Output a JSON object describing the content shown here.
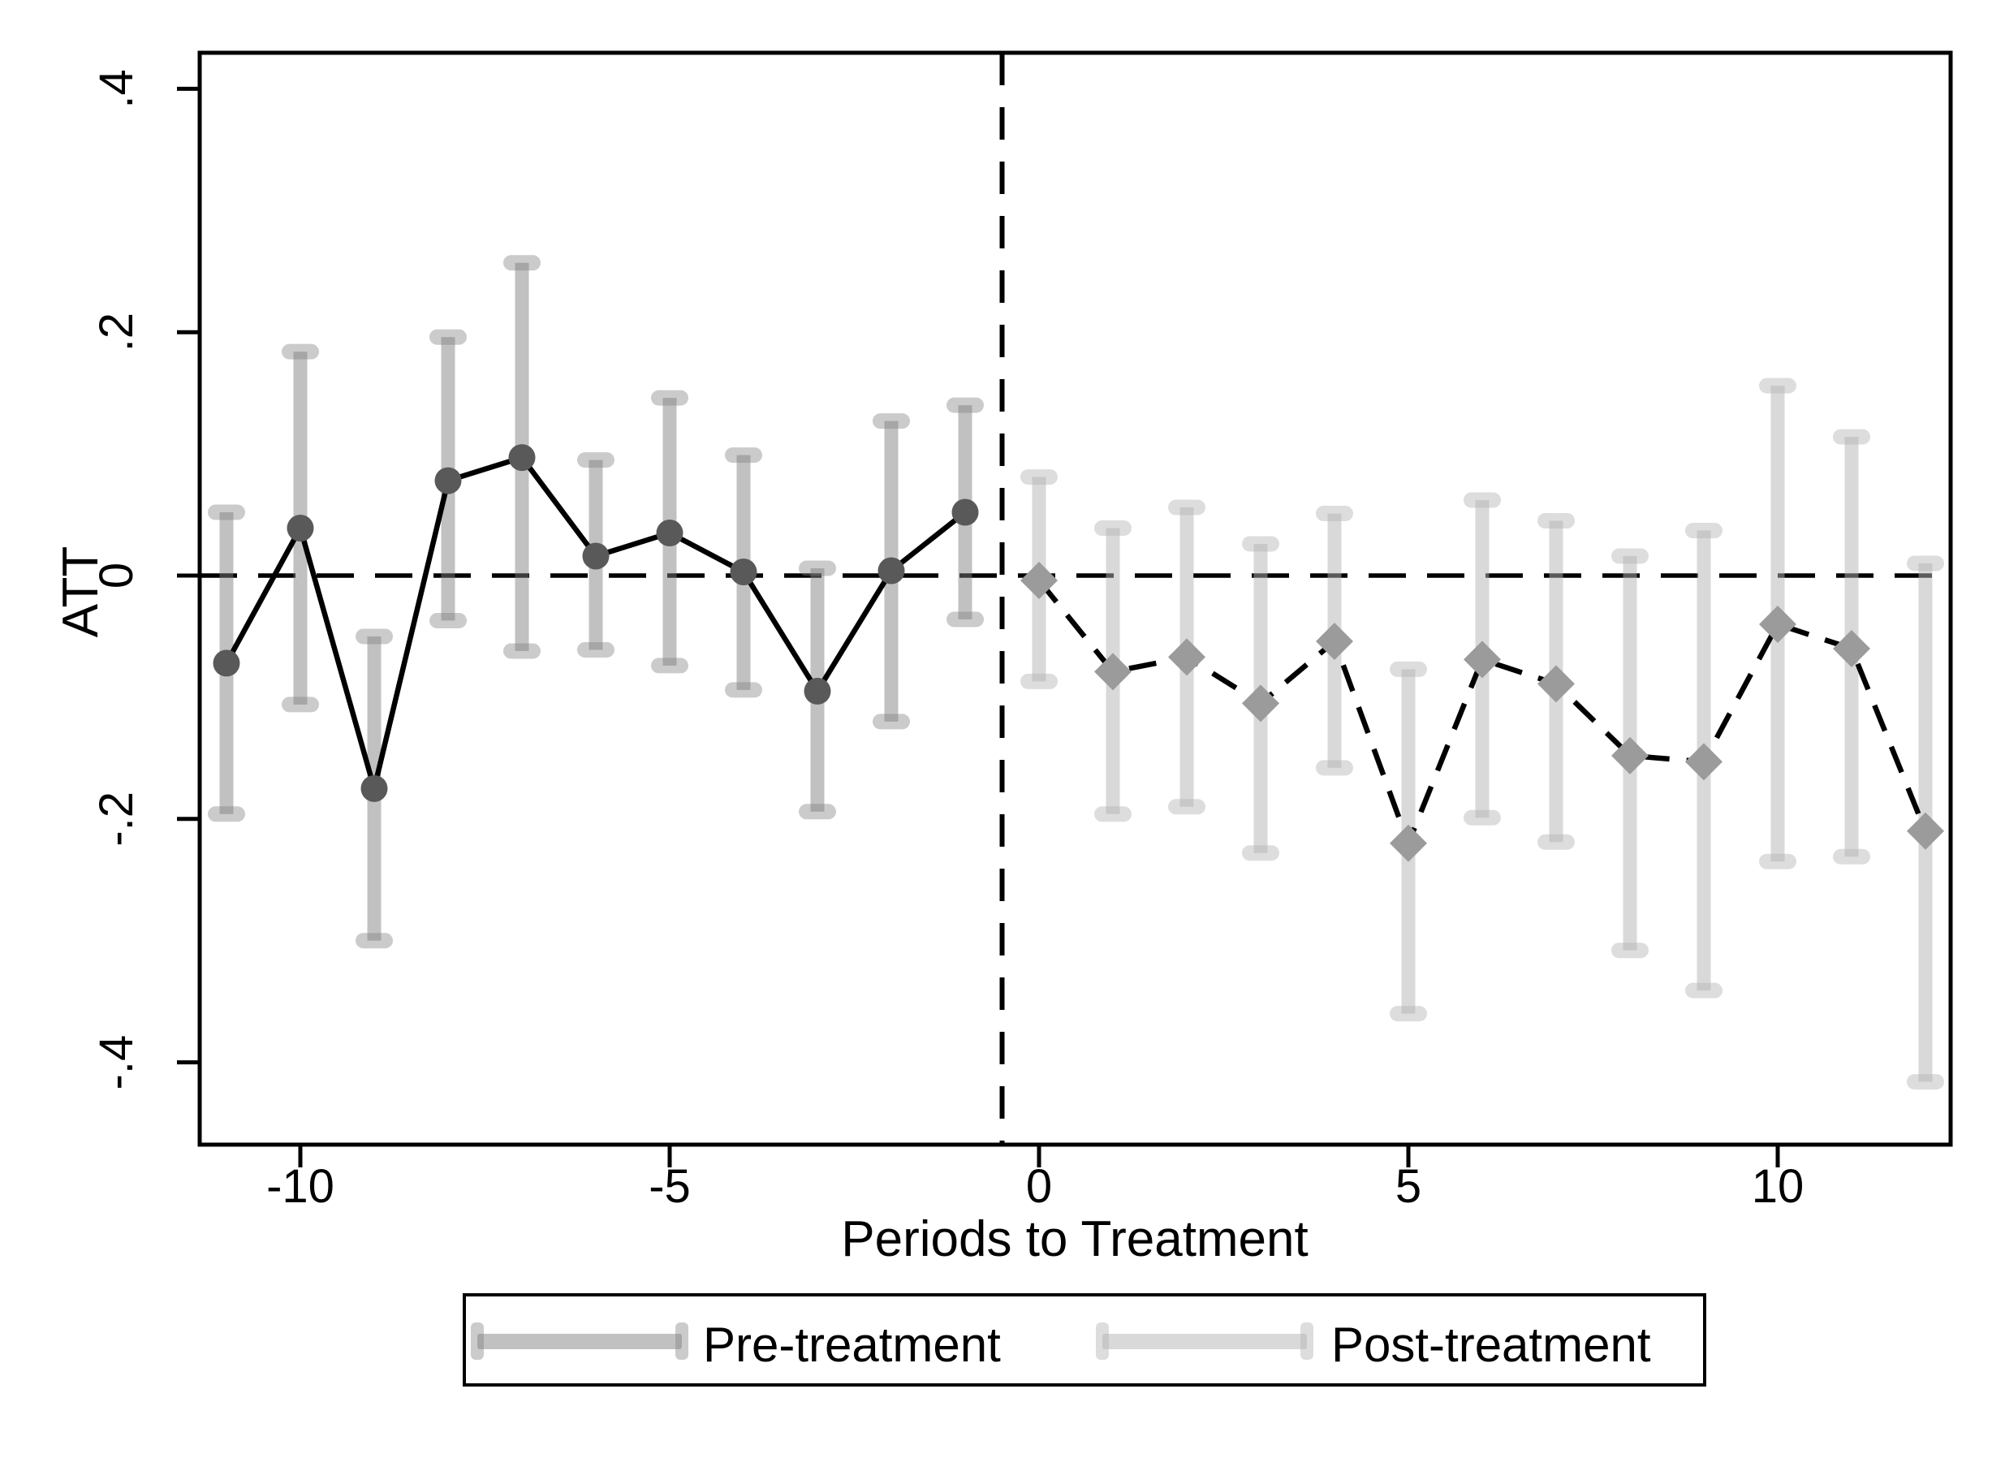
{
  "figure": {
    "background": "#ffffff",
    "description": "Event-study plot of ATT by period relative to treatment with 95% confidence intervals"
  },
  "colors": {
    "pre_marker": "#595959",
    "pre_ci_bar": "rgba(125,125,125,0.48)",
    "pre_ci_cap": "rgba(125,125,125,0.40)",
    "post_marker": "#9b9b9b",
    "post_ci_bar": "rgba(180,180,180,0.50)",
    "post_ci_cap": "rgba(180,180,180,0.45)",
    "line": "#000000",
    "axis": "#000000"
  },
  "chart_data": {
    "type": "scatter",
    "title": "",
    "xlabel": "Periods to Treatment",
    "ylabel": "ATT",
    "grid": false,
    "xlim": [
      -11.4,
      12.35
    ],
    "ylim": [
      -0.468,
      0.43
    ],
    "x_ticks": [
      {
        "value": -10,
        "label": "-10"
      },
      {
        "value": -5,
        "label": "-5"
      },
      {
        "value": 0,
        "label": "0"
      },
      {
        "value": 5,
        "label": "5"
      },
      {
        "value": 10,
        "label": "10"
      }
    ],
    "y_ticks": [
      {
        "value": 0.4,
        "label": ".4"
      },
      {
        "value": 0.2,
        "label": ".2"
      },
      {
        "value": 0,
        "label": "0"
      },
      {
        "value": -0.2,
        "label": "-.2"
      },
      {
        "value": -0.4,
        "label": "-.4"
      }
    ],
    "reference_lines": {
      "horizontal_y": 0,
      "vertical_x": -0.5,
      "style": "dashed"
    },
    "legend": {
      "position": "bottom",
      "entries": [
        "Pre-treatment",
        "Post-treatment"
      ]
    },
    "series": [
      {
        "name": "Pre-treatment",
        "marker": "circle",
        "line_style": "solid",
        "x": [
          -11,
          -10,
          -9,
          -8,
          -7,
          -6,
          -5,
          -4,
          -3,
          -2,
          -1
        ],
        "y": [
          -0.072,
          0.039,
          -0.175,
          0.078,
          0.097,
          0.016,
          0.035,
          0.003,
          -0.095,
          0.004,
          0.052
        ],
        "ci_low": [
          -0.196,
          -0.106,
          -0.3,
          -0.037,
          -0.062,
          -0.061,
          -0.074,
          -0.094,
          -0.194,
          -0.12,
          -0.036
        ],
        "ci_high": [
          0.052,
          0.184,
          -0.05,
          0.196,
          0.257,
          0.095,
          0.146,
          0.099,
          0.006,
          0.127,
          0.14
        ]
      },
      {
        "name": "Post-treatment",
        "marker": "diamond",
        "line_style": "dashed",
        "x": [
          0,
          1,
          2,
          3,
          4,
          5,
          6,
          7,
          8,
          9,
          10,
          11,
          12
        ],
        "y": [
          -0.004,
          -0.079,
          -0.067,
          -0.105,
          -0.054,
          -0.22,
          -0.069,
          -0.089,
          -0.148,
          -0.153,
          -0.04,
          -0.06,
          -0.21
        ],
        "ci_low": [
          -0.087,
          -0.196,
          -0.19,
          -0.228,
          -0.158,
          -0.36,
          -0.199,
          -0.219,
          -0.308,
          -0.341,
          -0.235,
          -0.231,
          -0.416
        ],
        "ci_high": [
          0.081,
          0.039,
          0.056,
          0.026,
          0.051,
          -0.077,
          0.062,
          0.045,
          0.016,
          0.037,
          0.156,
          0.114,
          0.01
        ]
      }
    ]
  }
}
